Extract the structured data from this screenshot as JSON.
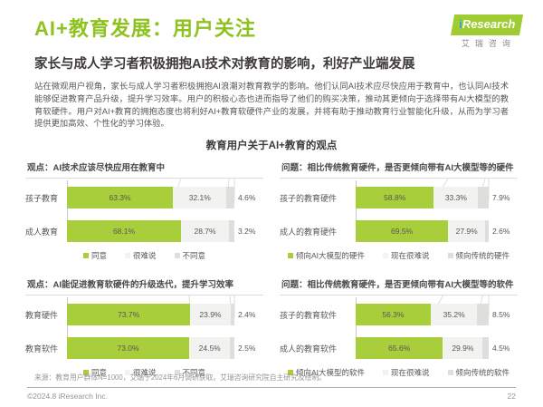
{
  "header": {
    "title": "AI+教育发展：用户关注",
    "subtitle": "家长与成人学习者积极拥抱AI技术对教育的影响，利好产业端发展",
    "logo": {
      "brand_i": "i",
      "brand_rest": "Research",
      "brand_cn": "艾瑞咨询"
    }
  },
  "intro": "站在微观用户视角，家长与成人学习者积极拥抱AI浪潮对教育教学的影响。他们认同AI技术应尽快应用于教育中，也认同AI技术能够促进教育产品升级，提升学习效率。用户的积极心态也进而指导了他们的购买决策，推动其更倾向于选择带有AI大模型的教育软硬件。用户对AI+教育的拥抱态度也将利好AI+教育软硬件产业的发展，并将有助于推动教育行业智能化升级，从而为学习者提供更加高效、个性化的学习体验。",
  "section_title": "教育用户关于AI+教育的观点",
  "colors": {
    "title_green": "#8EC31F",
    "bar_green": "#A8CE3B",
    "neutral_light": "#F2F2F0",
    "neutral_dark": "#DEDEDC"
  },
  "chart_data": [
    {
      "type": "bar",
      "orientation": "horizontal",
      "stacked": true,
      "title": "观点：AI技术应该尽快应用在教育中",
      "categories": [
        "孩子教育",
        "成人教育"
      ],
      "series": [
        {
          "name": "同意",
          "values": [
            63.3,
            68.1
          ]
        },
        {
          "name": "很难说",
          "values": [
            32.1,
            28.7
          ]
        },
        {
          "name": "不同意",
          "values": [
            4.6,
            3.2
          ]
        }
      ],
      "unit": "%",
      "xlim": [
        0,
        100
      ],
      "legend_position": "bottom",
      "colors": [
        "#A8CE3B",
        "#F2F2F0",
        "#DEDEDC"
      ]
    },
    {
      "type": "bar",
      "orientation": "horizontal",
      "stacked": true,
      "title": "问题：相比传统教育硬件，是否更倾向带有AI大模型等的硬件",
      "categories": [
        "孩子的教育硬件",
        "成人的教育硬件"
      ],
      "series": [
        {
          "name": "倾向AI大模型的硬件",
          "values": [
            58.8,
            69.5
          ]
        },
        {
          "name": "现在很难说",
          "values": [
            33.3,
            27.9
          ]
        },
        {
          "name": "倾向传统的硬件",
          "values": [
            7.9,
            2.6
          ]
        }
      ],
      "unit": "%",
      "xlim": [
        0,
        100
      ],
      "legend_position": "bottom",
      "colors": [
        "#A8CE3B",
        "#F2F2F0",
        "#DEDEDC"
      ]
    },
    {
      "type": "bar",
      "orientation": "horizontal",
      "stacked": true,
      "title": "观点：AI能促进教育软硬件的升级迭代，提升学习效率",
      "categories": [
        "教育硬件",
        "教育软件"
      ],
      "series": [
        {
          "name": "同意",
          "values": [
            73.7,
            73.0
          ]
        },
        {
          "name": "很难说",
          "values": [
            23.9,
            24.5
          ]
        },
        {
          "name": "不同意",
          "values": [
            2.4,
            2.5
          ]
        }
      ],
      "unit": "%",
      "xlim": [
        0,
        100
      ],
      "legend_position": "bottom",
      "colors": [
        "#A8CE3B",
        "#F2F2F0",
        "#DEDEDC"
      ]
    },
    {
      "type": "bar",
      "orientation": "horizontal",
      "stacked": true,
      "title": "问题：相比传统教育硬件，是否更倾向带有AI大模型等的软件",
      "categories": [
        "孩子的教育软件",
        "成人的教育软件"
      ],
      "series": [
        {
          "name": "倾向AI大模型的软件",
          "values": [
            56.3,
            65.6
          ]
        },
        {
          "name": "现在很难说",
          "values": [
            35.2,
            29.9
          ]
        },
        {
          "name": "倾向传统的软件",
          "values": [
            8.5,
            4.5
          ]
        }
      ],
      "unit": "%",
      "xlim": [
        0,
        100
      ],
      "legend_position": "bottom",
      "colors": [
        "#A8CE3B",
        "#F2F2F0",
        "#DEDEDC"
      ]
    }
  ],
  "footer": {
    "source": "来源：教育用户群体N=1000，艾瑞于2024年6月调研获取。艾瑞咨询研究院自主研究及绘制。",
    "copyright": "©2024.8 iResearch Inc.",
    "page_number": "22"
  }
}
